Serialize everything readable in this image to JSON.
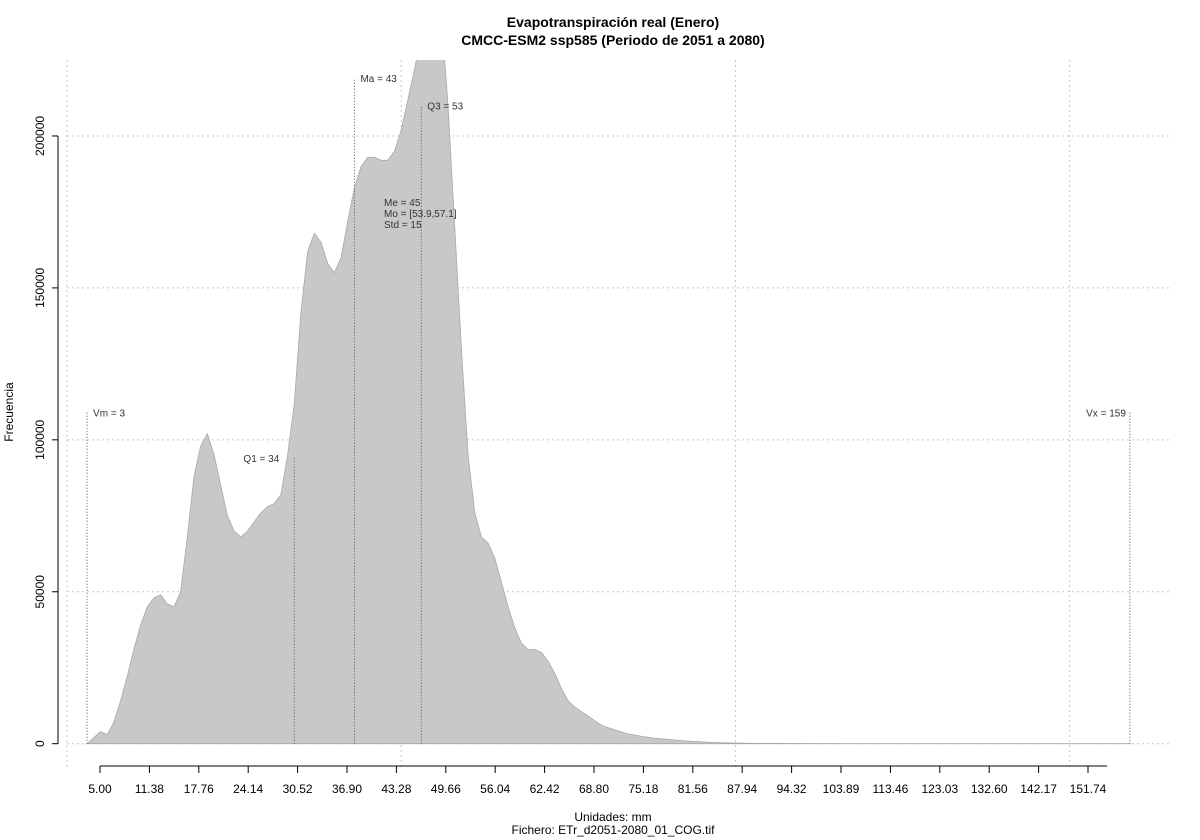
{
  "chart_data": {
    "type": "area",
    "title": "Evapotranspiración real (Enero)",
    "subtitle": "CMCC-ESM2 ssp585 (Periodo de 2051 a 2080)",
    "xlabel": "Unidades: mm",
    "xlabel2": "Fichero: ETr_d2051-2080_01_COG.tif",
    "ylabel": "Frecuencia",
    "xlim": [
      0,
      165
    ],
    "ylim": [
      -8000,
      225000
    ],
    "grid": true,
    "fill_color": "#c8c8c8",
    "x_ticks": [
      "5.00",
      "11.38",
      "17.76",
      "24.14",
      "30.52",
      "36.90",
      "43.28",
      "49.66",
      "56.04",
      "62.42",
      "68.80",
      "75.18",
      "81.56",
      "87.94",
      "94.32",
      "103.89",
      "113.46",
      "123.03",
      "132.60",
      "142.17",
      "151.74"
    ],
    "y_ticks": [
      "0",
      "50000",
      "100000",
      "150000",
      "200000"
    ],
    "x_grid": [
      0,
      50,
      100,
      150
    ],
    "y_grid": [
      0,
      50000,
      100000,
      150000,
      200000
    ],
    "series": [
      {
        "x": [
          3,
          4,
          5,
          6,
          7,
          8,
          9,
          10,
          11,
          12,
          13,
          14,
          15,
          16,
          17,
          18,
          19,
          20,
          21,
          22,
          23,
          24,
          25,
          26,
          27,
          28,
          29,
          30,
          31,
          32,
          33,
          34,
          35,
          36,
          37,
          38,
          39,
          40,
          41,
          42,
          43,
          44,
          45,
          46,
          47,
          48,
          49,
          50,
          51,
          52,
          53,
          54,
          55,
          56,
          57,
          58,
          59,
          60,
          61,
          62,
          63,
          64,
          65,
          66,
          67,
          68,
          69,
          70,
          71,
          72,
          73,
          74,
          75,
          76,
          77,
          78,
          79,
          80,
          82,
          84,
          86,
          88,
          90,
          92,
          94,
          96,
          98,
          100,
          103,
          106,
          110,
          120,
          130,
          140,
          150,
          159
        ],
        "values": [
          0,
          2000,
          4000,
          3000,
          7000,
          14000,
          22000,
          31000,
          39000,
          45000,
          48000,
          49000,
          46000,
          45000,
          50000,
          68000,
          88000,
          98000,
          102000,
          95000,
          85000,
          75000,
          70000,
          68000,
          70000,
          73000,
          76000,
          78000,
          79000,
          82000,
          95000,
          112000,
          142000,
          162000,
          168000,
          165000,
          158000,
          155000,
          160000,
          172000,
          183000,
          190000,
          193000,
          193000,
          192000,
          192000,
          195000,
          202000,
          212000,
          222000,
          234000,
          246000,
          250000,
          240000,
          210000,
          170000,
          130000,
          95000,
          76000,
          68000,
          66000,
          61000,
          53000,
          45000,
          38000,
          33000,
          31000,
          31000,
          30000,
          27000,
          23000,
          18000,
          14000,
          12000,
          10500,
          9000,
          7500,
          6000,
          4500,
          3200,
          2400,
          1800,
          1400,
          1000,
          700,
          450,
          300,
          200,
          100,
          80,
          50,
          30,
          20,
          10,
          5,
          0
        ]
      }
    ],
    "stats": [
      {
        "label": "Vm = 3",
        "x": 3,
        "y": 109000
      },
      {
        "label": "Q1 = 34",
        "x": 34,
        "y": 94000
      },
      {
        "label": "Ma = 43",
        "x": 43,
        "y": 219000
      },
      {
        "label": "Q3 = 53",
        "x": 53,
        "y": 210000
      },
      {
        "label": "Vx = 159",
        "x": 159,
        "y": 109000
      }
    ],
    "center_annotations": [
      "Me = 45",
      "Mo = [53.9,57.1]",
      "Std = 15"
    ]
  }
}
